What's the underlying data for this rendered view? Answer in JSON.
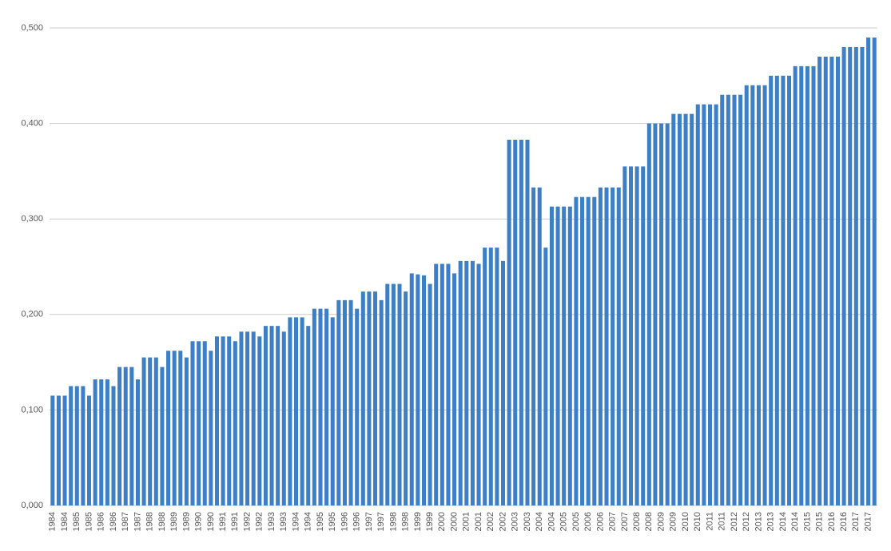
{
  "chart_data": {
    "type": "bar",
    "color": "#3d7fc6",
    "grid": true,
    "ylim": [
      0,
      0.5
    ],
    "yticks": [
      {
        "value": 0,
        "label": "0,000"
      },
      {
        "value": 0.1,
        "label": "0,100"
      },
      {
        "value": 0.2,
        "label": "0,200"
      },
      {
        "value": 0.3,
        "label": "0,300"
      },
      {
        "value": 0.4,
        "label": "0,400"
      },
      {
        "value": 0.5,
        "label": "0,500"
      }
    ],
    "categories": [
      "1984",
      null,
      "1984",
      null,
      "1985",
      null,
      "1985",
      null,
      "1986",
      null,
      "1986",
      null,
      "1987",
      null,
      "1987",
      null,
      "1988",
      null,
      "1988",
      null,
      "1989",
      null,
      "1989",
      null,
      "1990",
      null,
      "1990",
      null,
      "1991",
      null,
      "1991",
      null,
      "1992",
      null,
      "1992",
      null,
      "1993",
      null,
      "1993",
      null,
      "1994",
      null,
      "1994",
      null,
      "1995",
      null,
      "1995",
      null,
      "1996",
      null,
      "1996",
      null,
      "1997",
      null,
      "1997",
      null,
      "1998",
      null,
      "1998",
      null,
      "1999",
      null,
      "1999",
      null,
      "2000",
      null,
      "2000",
      null,
      "2001",
      null,
      "2001",
      null,
      "2002",
      null,
      "2002",
      null,
      "2003",
      null,
      "2003",
      null,
      "2004",
      null,
      "2004",
      null,
      "2005",
      null,
      "2005",
      null,
      "2006",
      null,
      "2006",
      null,
      "2007",
      null,
      "2007",
      null,
      "2008",
      null,
      "2008",
      null,
      "2009",
      null,
      "2009",
      null,
      "2010",
      null,
      "2010",
      null,
      "2011",
      null,
      "2011",
      null,
      "2012",
      null,
      "2012",
      null,
      "2013",
      null,
      "2013",
      null,
      "2014",
      null,
      "2014",
      null,
      "2015",
      null,
      "2015",
      null,
      "2016",
      null,
      "2016",
      null,
      "2017",
      null,
      "2017",
      null
    ],
    "values": [
      0.115,
      0.115,
      0.115,
      0.125,
      0.125,
      0.125,
      0.115,
      0.132,
      0.132,
      0.132,
      0.125,
      0.145,
      0.145,
      0.145,
      0.132,
      0.155,
      0.155,
      0.155,
      0.145,
      0.162,
      0.162,
      0.162,
      0.155,
      0.172,
      0.172,
      0.172,
      0.162,
      0.177,
      0.177,
      0.177,
      0.172,
      0.182,
      0.182,
      0.182,
      0.177,
      0.188,
      0.188,
      0.188,
      0.182,
      0.197,
      0.197,
      0.197,
      0.188,
      0.206,
      0.206,
      0.206,
      0.197,
      0.215,
      0.215,
      0.215,
      0.206,
      0.224,
      0.224,
      0.224,
      0.215,
      0.232,
      0.232,
      0.232,
      0.224,
      0.243,
      0.242,
      0.241,
      0.232,
      0.253,
      0.253,
      0.253,
      0.243,
      0.256,
      0.256,
      0.256,
      0.253,
      0.27,
      0.27,
      0.27,
      0.256,
      0.383,
      0.383,
      0.383,
      0.383,
      0.333,
      0.333,
      0.27,
      0.313,
      0.313,
      0.313,
      0.313,
      0.323,
      0.323,
      0.323,
      0.323,
      0.333,
      0.333,
      0.333,
      0.333,
      0.355,
      0.355,
      0.355,
      0.355,
      0.4,
      0.4,
      0.4,
      0.4,
      0.41,
      0.41,
      0.41,
      0.41,
      0.42,
      0.42,
      0.42,
      0.42,
      0.43,
      0.43,
      0.43,
      0.43,
      0.44,
      0.44,
      0.44,
      0.44,
      0.45,
      0.45,
      0.45,
      0.45,
      0.46,
      0.46,
      0.46,
      0.46,
      0.47,
      0.47,
      0.47,
      0.47,
      0.48,
      0.48,
      0.48,
      0.48,
      0.49,
      0.49
    ]
  }
}
